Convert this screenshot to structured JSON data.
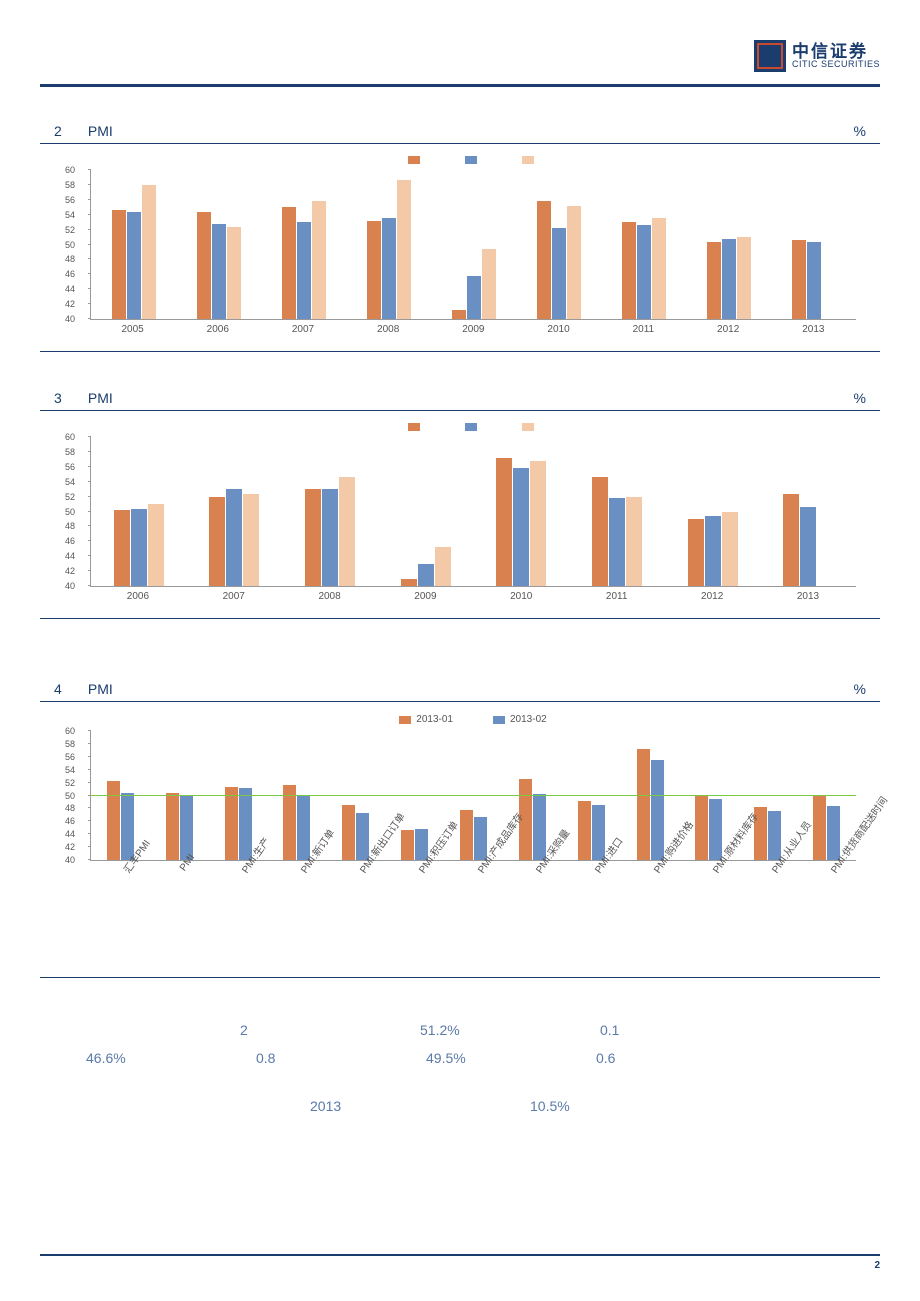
{
  "header": {
    "logo_cn": "中信证券",
    "logo_en": "CITIC SECURITIES"
  },
  "colors": {
    "orange": "#d9824f",
    "blue": "#6a8fc2",
    "peach": "#f3c9a7",
    "border": "#1a3d6d",
    "refline": "#7ac943"
  },
  "chart2": {
    "index": "2",
    "label": "PMI",
    "unit": "%",
    "type": "bar",
    "ylim": [
      40,
      60
    ],
    "tick_step": 2,
    "categories": [
      "2005",
      "2006",
      "2007",
      "2008",
      "2009",
      "2010",
      "2011",
      "2012",
      "2013"
    ],
    "series": [
      {
        "name": "",
        "color": "#d9824f",
        "values": [
          54.6,
          54.3,
          55.0,
          53.2,
          41.2,
          55.8,
          53.0,
          50.4,
          50.6
        ]
      },
      {
        "name": "",
        "color": "#6a8fc2",
        "values": [
          54.4,
          52.8,
          53.0,
          53.6,
          45.8,
          52.2,
          52.6,
          50.8,
          50.3
        ]
      },
      {
        "name": "",
        "color": "#f3c9a7",
        "values": [
          58.0,
          52.3,
          55.8,
          58.6,
          49.4,
          55.2,
          53.6,
          51.0,
          null
        ]
      }
    ]
  },
  "chart3": {
    "index": "3",
    "label": "PMI",
    "unit": "%",
    "type": "bar",
    "ylim": [
      40,
      60
    ],
    "tick_step": 2,
    "categories": [
      "2006",
      "2007",
      "2008",
      "2009",
      "2010",
      "2011",
      "2012",
      "2013"
    ],
    "series": [
      {
        "name": "",
        "color": "#d9824f",
        "values": [
          50.2,
          52.0,
          53.0,
          41.0,
          57.2,
          54.6,
          49.0,
          52.4
        ]
      },
      {
        "name": "",
        "color": "#6a8fc2",
        "values": [
          50.4,
          53.0,
          53.0,
          43.0,
          55.8,
          51.8,
          49.4,
          50.6
        ]
      },
      {
        "name": "",
        "color": "#f3c9a7",
        "values": [
          51.0,
          52.4,
          54.6,
          45.2,
          56.8,
          52.0,
          50.0,
          null
        ]
      }
    ]
  },
  "chart4": {
    "index": "4",
    "label": "PMI",
    "unit": "%",
    "type": "bar",
    "ylim": [
      40,
      60
    ],
    "tick_step": 2,
    "refline": 50,
    "categories": [
      "汇丰PMI",
      "PMI",
      "PMI:生产",
      "PMI:新订单",
      "PMI:新出口订单",
      "PMI:积压订单",
      "PMI:产成品库存",
      "PMI:采购量",
      "PMI:进口",
      "PMI:购进价格",
      "PMI:原材料库存",
      "PMI:从业人员",
      "PMI:供货商配送时间"
    ],
    "series": [
      {
        "name": "2013-01",
        "color": "#d9824f",
        "values": [
          52.3,
          50.4,
          51.3,
          51.6,
          48.5,
          44.6,
          47.7,
          52.6,
          49.1,
          57.2,
          50.1,
          48.2,
          50.0
        ]
      },
      {
        "name": "2013-02",
        "color": "#6a8fc2",
        "values": [
          50.4,
          50.1,
          51.2,
          50.1,
          47.3,
          44.8,
          46.6,
          50.2,
          48.5,
          55.5,
          49.5,
          47.6,
          48.3
        ]
      }
    ]
  },
  "body": {
    "r1": {
      "a": "2",
      "b": "51.2%",
      "c": "0.1"
    },
    "r2": {
      "a": "46.6%",
      "b": "0.8",
      "c": "49.5%",
      "d": "0.6"
    },
    "r3": {
      "a": "2013",
      "b": "10.5%"
    }
  },
  "footer": {
    "page": "2"
  }
}
